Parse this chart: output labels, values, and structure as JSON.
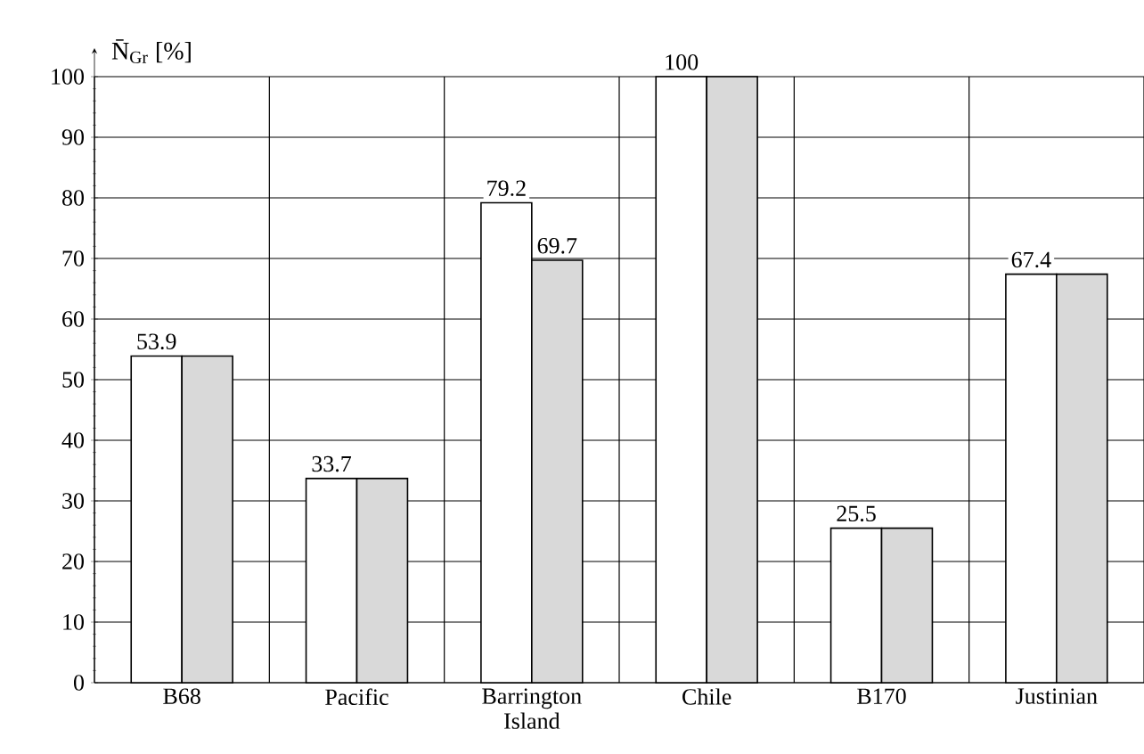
{
  "chart_data": {
    "type": "bar",
    "ylabel": "N̄$_{Gr}$ [%]",
    "categories": [
      "B68",
      "Pacific",
      "Barrington Island",
      "Chile",
      "B170",
      "Justinian"
    ],
    "series": [
      {
        "color": "#ffffff",
        "values": [
          53.9,
          33.7,
          79.2,
          100,
          25.5,
          67.4
        ],
        "value_labels": [
          "53.9",
          "33.7",
          "79.2",
          "100",
          "25.5",
          "67.4"
        ]
      },
      {
        "color": "#d9d9d9",
        "values": [
          53.9,
          33.7,
          69.7,
          100,
          25.5,
          67.4
        ],
        "value_labels": [
          null,
          null,
          "69.7",
          null,
          null,
          null
        ]
      }
    ],
    "ylim": [
      0,
      100
    ],
    "yticks": [
      0,
      10,
      20,
      30,
      40,
      50,
      60,
      70,
      80,
      90,
      100
    ],
    "grid": true
  }
}
